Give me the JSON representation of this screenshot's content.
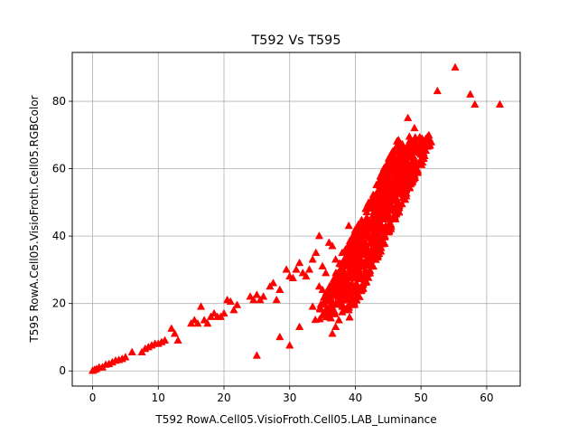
{
  "chart_data": {
    "type": "scatter",
    "title": "T592 Vs T595",
    "xlabel": "T592 RowA.Cell05.VisioFroth.Cell05.LAB_Luminance",
    "ylabel": "T595 RowA.Cell05.VisioFroth.Cell05.RGBColor",
    "xlim": [
      -3.1,
      65.1
    ],
    "ylim": [
      -4.5,
      94.5
    ],
    "xticks": [
      0,
      10,
      20,
      30,
      40,
      50,
      60
    ],
    "yticks": [
      0,
      20,
      40,
      60,
      80
    ],
    "grid": true,
    "marker": "triangle-up",
    "color": "#ff0000",
    "series": [
      {
        "points": [
          [
            0,
            0
          ],
          [
            0.3,
            0.3
          ],
          [
            0.6,
            0.5
          ],
          [
            1,
            1
          ],
          [
            1.5,
            1
          ],
          [
            2,
            1.8
          ],
          [
            2.5,
            2
          ],
          [
            3,
            2.5
          ],
          [
            3.5,
            3
          ],
          [
            4,
            3.2
          ],
          [
            4.5,
            3.5
          ],
          [
            5,
            4
          ],
          [
            6,
            5.5
          ],
          [
            7.5,
            5.5
          ],
          [
            8,
            6.5
          ],
          [
            8.5,
            7
          ],
          [
            9,
            7.5
          ],
          [
            9.5,
            8
          ],
          [
            10,
            8
          ],
          [
            10.5,
            8.5
          ],
          [
            11,
            9
          ],
          [
            12,
            12.5
          ],
          [
            12.5,
            11
          ],
          [
            13,
            9
          ],
          [
            15,
            14
          ],
          [
            15.5,
            15
          ],
          [
            16,
            14
          ],
          [
            16.5,
            19
          ],
          [
            17,
            15
          ],
          [
            17.5,
            14
          ],
          [
            18,
            16
          ],
          [
            18.5,
            17
          ],
          [
            19,
            16
          ],
          [
            19.5,
            16
          ],
          [
            20,
            17
          ],
          [
            20.5,
            21
          ],
          [
            21,
            20.5
          ],
          [
            21.5,
            18
          ],
          [
            22,
            19.5
          ],
          [
            24,
            22
          ],
          [
            24.5,
            21
          ],
          [
            25,
            22.5
          ],
          [
            25.5,
            21
          ],
          [
            26,
            22
          ],
          [
            27,
            25
          ],
          [
            27.5,
            26
          ],
          [
            28,
            21
          ],
          [
            28.5,
            24
          ],
          [
            29.5,
            30
          ],
          [
            30,
            28
          ],
          [
            30.5,
            27.5
          ],
          [
            31,
            30
          ],
          [
            31.5,
            32
          ],
          [
            32,
            29
          ],
          [
            32.5,
            28
          ],
          [
            33,
            30
          ],
          [
            33.5,
            33
          ],
          [
            34,
            35
          ],
          [
            34.5,
            40
          ],
          [
            35,
            31
          ],
          [
            35.5,
            29
          ],
          [
            36,
            38
          ],
          [
            36.5,
            37
          ],
          [
            37,
            33
          ],
          [
            38,
            35
          ],
          [
            38.5,
            36
          ],
          [
            39,
            43
          ],
          [
            39.5,
            37
          ],
          [
            40,
            40
          ],
          [
            25,
            4.5
          ],
          [
            28.5,
            10
          ],
          [
            30,
            7.5
          ],
          [
            31.5,
            13
          ],
          [
            33.5,
            19
          ],
          [
            34.5,
            25
          ],
          [
            35,
            24
          ],
          [
            36,
            17
          ],
          [
            36.5,
            11
          ],
          [
            37,
            13
          ],
          [
            37.5,
            15
          ],
          [
            38,
            19
          ],
          [
            39,
            18
          ],
          [
            45,
            62
          ],
          [
            46.5,
            63
          ],
          [
            47.5,
            66
          ],
          [
            48,
            75
          ],
          [
            49,
            72
          ],
          [
            50,
            67
          ],
          [
            52.5,
            83
          ],
          [
            55.2,
            90
          ],
          [
            57.5,
            82
          ],
          [
            58.2,
            79
          ],
          [
            62,
            79
          ]
        ]
      }
    ]
  }
}
